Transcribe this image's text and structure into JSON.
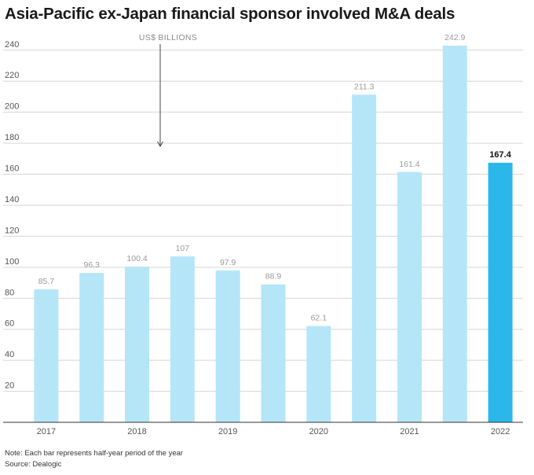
{
  "title": "Asia-Pacific ex-Japan financial sponsor involved M&A deals",
  "note": "Note: Each bar represents half-year period of the year",
  "source": "Source: Dealogic",
  "colors": {
    "bar": "#b5e6f7",
    "highlight": "#2bb7ea",
    "grid": "#d6d6d6",
    "axis": "#333333"
  },
  "chart_data": {
    "type": "bar",
    "unit_label": "US$ BILLIONS",
    "values": [
      85.7,
      96.3,
      100.4,
      107,
      97.9,
      88.9,
      62.1,
      211.3,
      161.4,
      242.9,
      167.4
    ],
    "value_labels": [
      "85.7",
      "96.3",
      "100.4",
      "107",
      "97.9",
      "88.9",
      "62.1",
      "211.3",
      "161.4",
      "242.9",
      "167.4"
    ],
    "highlight_index": 10,
    "year_labels": [
      {
        "label": "2017",
        "bar_index": 0
      },
      {
        "label": "2018",
        "bar_index": 2
      },
      {
        "label": "2019",
        "bar_index": 4
      },
      {
        "label": "2020",
        "bar_index": 6
      },
      {
        "label": "2021",
        "bar_index": 8
      },
      {
        "label": "2022",
        "bar_index": 10
      }
    ],
    "yticks": [
      20,
      40,
      60,
      80,
      100,
      120,
      140,
      160,
      180,
      200,
      220,
      240
    ],
    "ylim": [
      0,
      248
    ],
    "grid": true,
    "legend": "none"
  }
}
